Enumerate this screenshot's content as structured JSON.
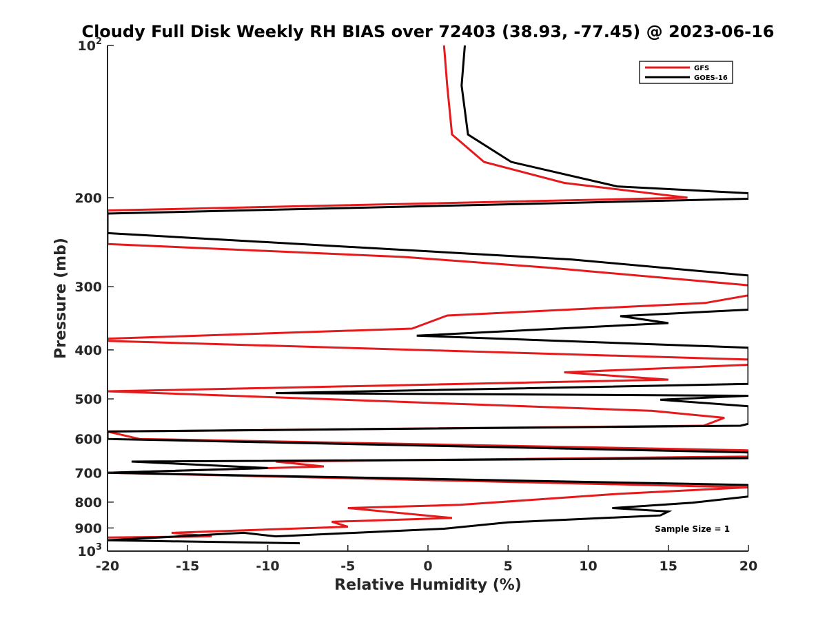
{
  "chart_data": {
    "type": "line",
    "title": "Cloudy Full Disk Weekly RH BIAS over 72403 (38.93, -77.45) @ 2023-06-16",
    "xlabel": "Relative Humidity (%)",
    "ylabel": "Pressure (mb)",
    "xlim": [
      -20,
      20
    ],
    "ylim": [
      100,
      1000
    ],
    "yscale": "log",
    "y_reversed": true,
    "grid": false,
    "legend_position": "top-right",
    "x_ticks": [
      {
        "value": -20,
        "label": "-20"
      },
      {
        "value": -15,
        "label": "-15"
      },
      {
        "value": -10,
        "label": "-10"
      },
      {
        "value": -5,
        "label": "-5"
      },
      {
        "value": 0,
        "label": "0"
      },
      {
        "value": 5,
        "label": "5"
      },
      {
        "value": 10,
        "label": "10"
      },
      {
        "value": 15,
        "label": "15"
      },
      {
        "value": 20,
        "label": "20"
      }
    ],
    "y_ticks": [
      {
        "value": 100,
        "base": "10",
        "exp": "2"
      },
      {
        "value": 200,
        "label": "200"
      },
      {
        "value": 300,
        "label": "300"
      },
      {
        "value": 400,
        "label": "400"
      },
      {
        "value": 500,
        "label": "500"
      },
      {
        "value": 600,
        "label": "600"
      },
      {
        "value": 700,
        "label": "700"
      },
      {
        "value": 800,
        "label": "800"
      },
      {
        "value": 900,
        "label": "900"
      },
      {
        "value": 1000,
        "base": "10",
        "exp": "3"
      }
    ],
    "series": [
      {
        "name": "GFS",
        "color": "#e41a1c",
        "points": [
          [
            1.0,
            100
          ],
          [
            1.2,
            120
          ],
          [
            1.5,
            150
          ],
          [
            3.5,
            170
          ],
          [
            8.5,
            187
          ],
          [
            16.2,
            200
          ],
          [
            -20,
            212
          ],
          [
            -20,
            247
          ],
          [
            -1.5,
            262
          ],
          [
            7.5,
            275
          ],
          [
            20,
            298
          ],
          [
            20,
            312
          ],
          [
            17.3,
            323
          ],
          [
            1.2,
            342
          ],
          [
            -1.0,
            363
          ],
          [
            -20,
            380
          ],
          [
            -20,
            384
          ],
          [
            20,
            418
          ],
          [
            20,
            428
          ],
          [
            8.5,
            443
          ],
          [
            15.0,
            458
          ],
          [
            -20,
            483
          ],
          [
            -20,
            483
          ],
          [
            14.0,
            528
          ],
          [
            18.5,
            545
          ],
          [
            17.2,
            565
          ],
          [
            -20,
            580
          ],
          [
            -18.0,
            600
          ],
          [
            20,
            632
          ],
          [
            20,
            650
          ],
          [
            -9.5,
            665
          ],
          [
            -6.5,
            680
          ],
          [
            -20,
            700
          ],
          [
            -20,
            700
          ],
          [
            20,
            748
          ],
          [
            12.0,
            770
          ],
          [
            2.0,
            810
          ],
          [
            -5.0,
            822
          ],
          [
            1.5,
            860
          ],
          [
            -6.0,
            875
          ],
          [
            -5.0,
            895
          ],
          [
            -16.0,
            920
          ],
          [
            -13.5,
            935
          ],
          [
            -20,
            940
          ]
        ]
      },
      {
        "name": "GOES-16",
        "color": "#000000",
        "points": [
          [
            2.3,
            100
          ],
          [
            2.1,
            120
          ],
          [
            2.5,
            150
          ],
          [
            5.2,
            170
          ],
          [
            11.8,
            190
          ],
          [
            20,
            196
          ],
          [
            20,
            201
          ],
          [
            -20,
            215
          ],
          [
            -20,
            235
          ],
          [
            9.0,
            265
          ],
          [
            20,
            285
          ],
          [
            20,
            333
          ],
          [
            12.0,
            343
          ],
          [
            15.0,
            354
          ],
          [
            -0.7,
            375
          ],
          [
            20,
            396
          ],
          [
            20,
            467
          ],
          [
            -9.5,
            487
          ],
          [
            20,
            493
          ],
          [
            14.5,
            502
          ],
          [
            20,
            517
          ],
          [
            20,
            560
          ],
          [
            19.5,
            565
          ],
          [
            -20,
            580
          ],
          [
            -20,
            600
          ],
          [
            20,
            638
          ],
          [
            20,
            655
          ],
          [
            -18.5,
            665
          ],
          [
            -10.0,
            685
          ],
          [
            -20,
            700
          ],
          [
            -20,
            700
          ],
          [
            20,
            740
          ],
          [
            20,
            780
          ],
          [
            16.5,
            802
          ],
          [
            11.5,
            822
          ],
          [
            15.0,
            835
          ],
          [
            14.5,
            850
          ],
          [
            5.0,
            877
          ],
          [
            1.0,
            903
          ],
          [
            -9.5,
            935
          ],
          [
            -11.5,
            920
          ],
          [
            -20,
            952
          ],
          [
            -20,
            952
          ],
          [
            -8.0,
            965
          ]
        ]
      }
    ],
    "annotations": [
      {
        "text": "Sample Size = 1",
        "x": 16.5,
        "y": 905
      }
    ]
  }
}
